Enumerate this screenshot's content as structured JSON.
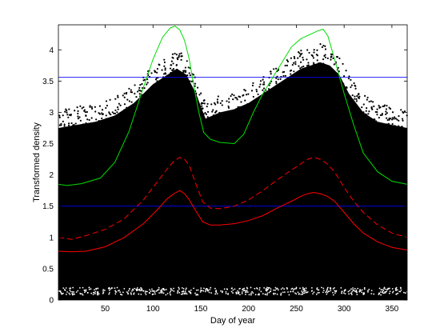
{
  "chart_data": {
    "type": "scatter",
    "xlabel": "Day of year",
    "ylabel": "Transformed density",
    "xlim": [
      1,
      366
    ],
    "ylim": [
      0,
      4.4
    ],
    "xticks": [
      50,
      100,
      150,
      200,
      250,
      300,
      350
    ],
    "yticks": [
      0,
      0.5,
      1,
      1.5,
      2,
      2.5,
      3,
      3.5,
      4
    ],
    "xtick_labels": [
      "50",
      "100",
      "150",
      "200",
      "250",
      "300",
      "350"
    ],
    "ytick_labels": [
      "0",
      "0.5",
      "1",
      "1.5",
      "2",
      "2.5",
      "3",
      "3.5",
      "4"
    ],
    "grid": false,
    "legend": "none",
    "scatter_envelope": {
      "color": "#000000",
      "x": [
        1,
        20,
        40,
        60,
        80,
        100,
        115,
        125,
        135,
        145,
        155,
        170,
        185,
        200,
        215,
        230,
        245,
        255,
        265,
        275,
        285,
        295,
        305,
        320,
        335,
        350,
        366
      ],
      "upper": [
        2.75,
        2.8,
        2.85,
        2.95,
        3.15,
        3.45,
        3.6,
        3.7,
        3.6,
        3.3,
        2.9,
        3.0,
        3.05,
        3.15,
        3.3,
        3.45,
        3.6,
        3.7,
        3.75,
        3.8,
        3.75,
        3.6,
        3.3,
        3.0,
        2.85,
        2.8,
        2.75
      ],
      "lower": [
        0.0,
        0.0,
        0.0,
        0.0,
        0.0,
        0.0,
        0.0,
        0.0,
        0.0,
        0.0,
        0.0,
        0.0,
        0.0,
        0.0,
        0.0,
        0.0,
        0.0,
        0.0,
        0.0,
        0.0,
        0.0,
        0.0,
        0.0,
        0.0,
        0.0,
        0.0,
        0.0
      ]
    },
    "hlines": [
      {
        "y": 3.56,
        "color": "#0000ff"
      },
      {
        "y": 1.5,
        "color": "#0000ff"
      }
    ],
    "series": [
      {
        "color": "#00dd00",
        "dash": "solid",
        "x": [
          1,
          10,
          25,
          45,
          60,
          75,
          90,
          100,
          110,
          118,
          123,
          128,
          133,
          138,
          143,
          148,
          153,
          160,
          170,
          185,
          195,
          205,
          215,
          225,
          235,
          245,
          255,
          265,
          272,
          278,
          283,
          290,
          300,
          310,
          320,
          335,
          350,
          366
        ],
        "values": [
          1.85,
          1.83,
          1.86,
          1.95,
          2.2,
          2.7,
          3.4,
          3.85,
          4.2,
          4.35,
          4.38,
          4.32,
          4.15,
          3.85,
          3.4,
          3.0,
          2.68,
          2.57,
          2.52,
          2.5,
          2.65,
          3.0,
          3.3,
          3.55,
          3.8,
          4.05,
          4.18,
          4.25,
          4.3,
          4.33,
          4.22,
          3.85,
          3.3,
          2.8,
          2.35,
          2.05,
          1.9,
          1.85
        ]
      },
      {
        "color": "#ff0000",
        "dash": "dashed",
        "x": [
          1,
          15,
          30,
          50,
          70,
          90,
          105,
          115,
          122,
          128,
          133,
          138,
          145,
          152,
          160,
          170,
          185,
          200,
          215,
          230,
          245,
          255,
          262,
          268,
          275,
          282,
          290,
          300,
          310,
          320,
          335,
          350,
          366
        ],
        "values": [
          1.0,
          0.97,
          1.03,
          1.13,
          1.3,
          1.6,
          1.9,
          2.1,
          2.22,
          2.28,
          2.25,
          2.15,
          1.85,
          1.57,
          1.47,
          1.46,
          1.5,
          1.6,
          1.75,
          1.92,
          2.08,
          2.18,
          2.25,
          2.28,
          2.25,
          2.18,
          2.05,
          1.8,
          1.58,
          1.4,
          1.2,
          1.07,
          1.0
        ]
      },
      {
        "color": "#ff0000",
        "dash": "solid",
        "x": [
          1,
          15,
          30,
          50,
          70,
          90,
          105,
          115,
          122,
          128,
          133,
          138,
          145,
          152,
          160,
          170,
          185,
          200,
          215,
          230,
          245,
          255,
          262,
          268,
          275,
          282,
          290,
          300,
          310,
          320,
          335,
          350,
          366
        ],
        "values": [
          0.78,
          0.77,
          0.78,
          0.85,
          1.0,
          1.22,
          1.45,
          1.62,
          1.7,
          1.75,
          1.7,
          1.6,
          1.42,
          1.25,
          1.2,
          1.2,
          1.22,
          1.27,
          1.35,
          1.47,
          1.58,
          1.66,
          1.7,
          1.72,
          1.7,
          1.66,
          1.58,
          1.4,
          1.22,
          1.07,
          0.93,
          0.84,
          0.8
        ]
      }
    ]
  }
}
